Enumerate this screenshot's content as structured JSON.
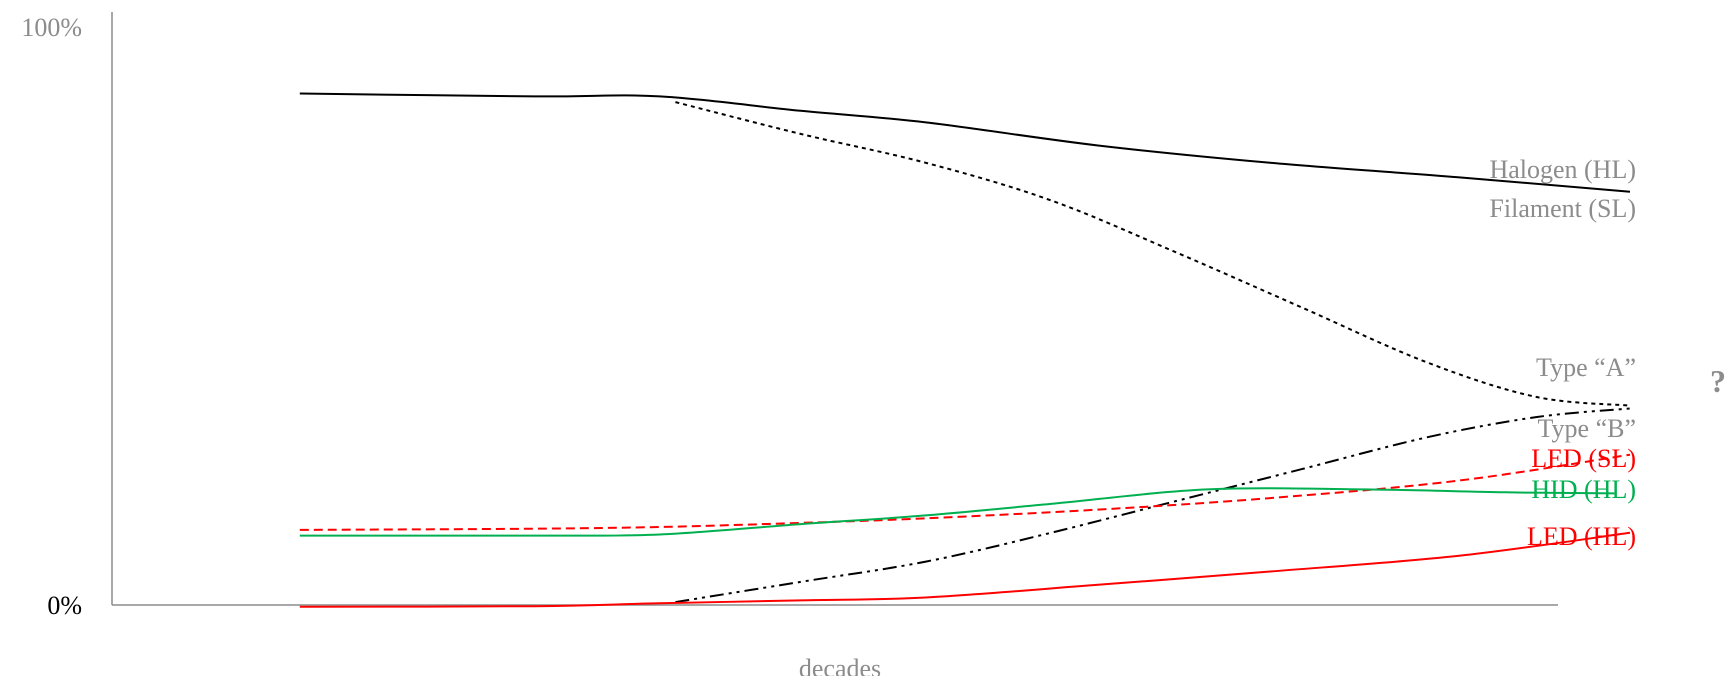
{
  "chart_data": {
    "type": "line",
    "title": "",
    "xlabel": "decades",
    "ylabel": "",
    "yticks": [
      {
        "value": 0,
        "label": "0%",
        "color": "#000000"
      },
      {
        "value": 100,
        "label": "100%",
        "color": "#8c8c8c"
      }
    ],
    "xlim": [
      0,
      10
    ],
    "ylim": [
      0,
      100
    ],
    "grid": false,
    "annotation": "?",
    "annotation_color": "#8c8c8c",
    "series": [
      {
        "key": "halogen",
        "name": "Halogen (HL)",
        "color": "#000000",
        "dash": "solid",
        "label_color": "#8c8c8c",
        "x": [
          1.2,
          2.7,
          3.5,
          4.4,
          5.2,
          6.3,
          7.4,
          8.6,
          9.7
        ],
        "y": [
          88.5,
          88,
          88,
          85.5,
          83.5,
          79.5,
          76.5,
          74,
          71.5
        ]
      },
      {
        "key": "filament",
        "name": "Filament (SL)",
        "color": "#000000",
        "dash": "4,4",
        "label_color": "#8c8c8c",
        "x": [
          3.6,
          4.4,
          5.2,
          6,
          6.8,
          7.6,
          8.4,
          9.1,
          9.7
        ],
        "y": [
          87,
          81.5,
          76.5,
          70,
          61,
          51.5,
          42,
          36,
          34.5
        ]
      },
      {
        "key": "type_a",
        "name": "Type “A”",
        "color": "#8c8c8c",
        "dash": "none",
        "label_color": "#8c8c8c",
        "x": [],
        "y": []
      },
      {
        "key": "type_b",
        "name": "Type “B”",
        "color": "#000000",
        "dash": "14,5,3,5,3,5",
        "label_color": "#8c8c8c",
        "x": [
          3.6,
          4.4,
          5.2,
          6,
          6.8,
          7.6,
          8.4,
          9.1,
          9.7
        ],
        "y": [
          0.5,
          4,
          7.5,
          12.5,
          18,
          23.5,
          29,
          32.5,
          34
        ]
      },
      {
        "key": "led_sl",
        "name": "LED (SL)",
        "color": "#ff0000",
        "dash": "9,5",
        "label_color": "#ff0000",
        "x": [
          1.2,
          2.7,
          3.5,
          4.4,
          5.2,
          6.3,
          7.4,
          8.6,
          9.7
        ],
        "y": [
          13,
          13.2,
          13.5,
          14.2,
          15,
          16.5,
          18.5,
          21.5,
          26
        ]
      },
      {
        "key": "hid",
        "name": "HID (HL)",
        "color": "#00b050",
        "dash": "solid",
        "label_color": "#00b050",
        "x": [
          1.2,
          2.7,
          3.5,
          4.4,
          5.2,
          6,
          7,
          8,
          8.9,
          9.6
        ],
        "y": [
          12,
          12,
          12.2,
          14,
          15.5,
          17.5,
          20,
          20,
          19.5,
          19.3
        ]
      },
      {
        "key": "led_hl",
        "name": "LED (HL)",
        "color": "#ff0000",
        "dash": "solid",
        "label_color": "#ff0000",
        "x": [
          1.2,
          2.7,
          3.5,
          4.4,
          5.2,
          6.3,
          7.4,
          8.6,
          9.7
        ],
        "y": [
          -0.3,
          -0.2,
          0.3,
          0.8,
          1.3,
          3.5,
          5.8,
          8.5,
          12.5
        ]
      }
    ]
  }
}
